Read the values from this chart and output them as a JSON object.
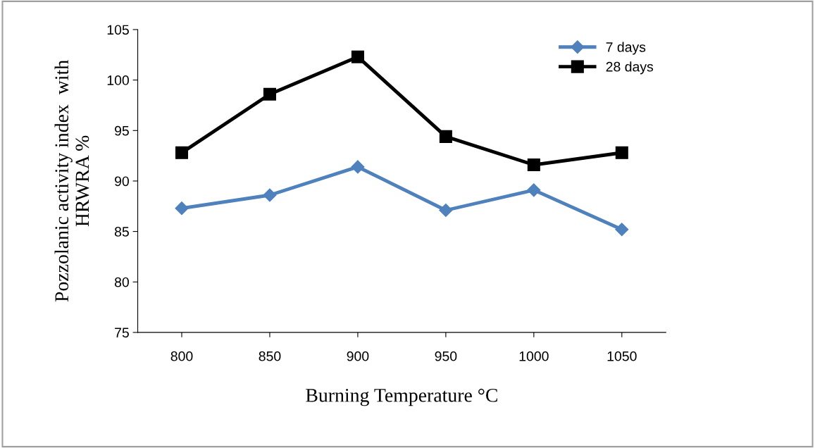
{
  "chart_data": {
    "type": "line",
    "xlabel": "Burning Temperature °C",
    "ylabel": "Pozzolanic activity index  with\nHRWRA %",
    "categories": [
      "800",
      "850",
      "900",
      "950",
      "1000",
      "1050"
    ],
    "series": [
      {
        "name": "7 days",
        "color": "#4f81bd",
        "marker": "diamond",
        "values": [
          87.3,
          88.6,
          91.4,
          87.1,
          89.1,
          85.2
        ]
      },
      {
        "name": "28 days",
        "color": "#000000",
        "marker": "square",
        "values": [
          92.8,
          98.6,
          102.3,
          94.4,
          91.6,
          92.8
        ]
      }
    ],
    "ylim": [
      75,
      105
    ],
    "yticks": [
      75,
      80,
      85,
      90,
      95,
      100,
      105
    ],
    "grid": false,
    "legend": "top right",
    "line_style": "solid"
  }
}
